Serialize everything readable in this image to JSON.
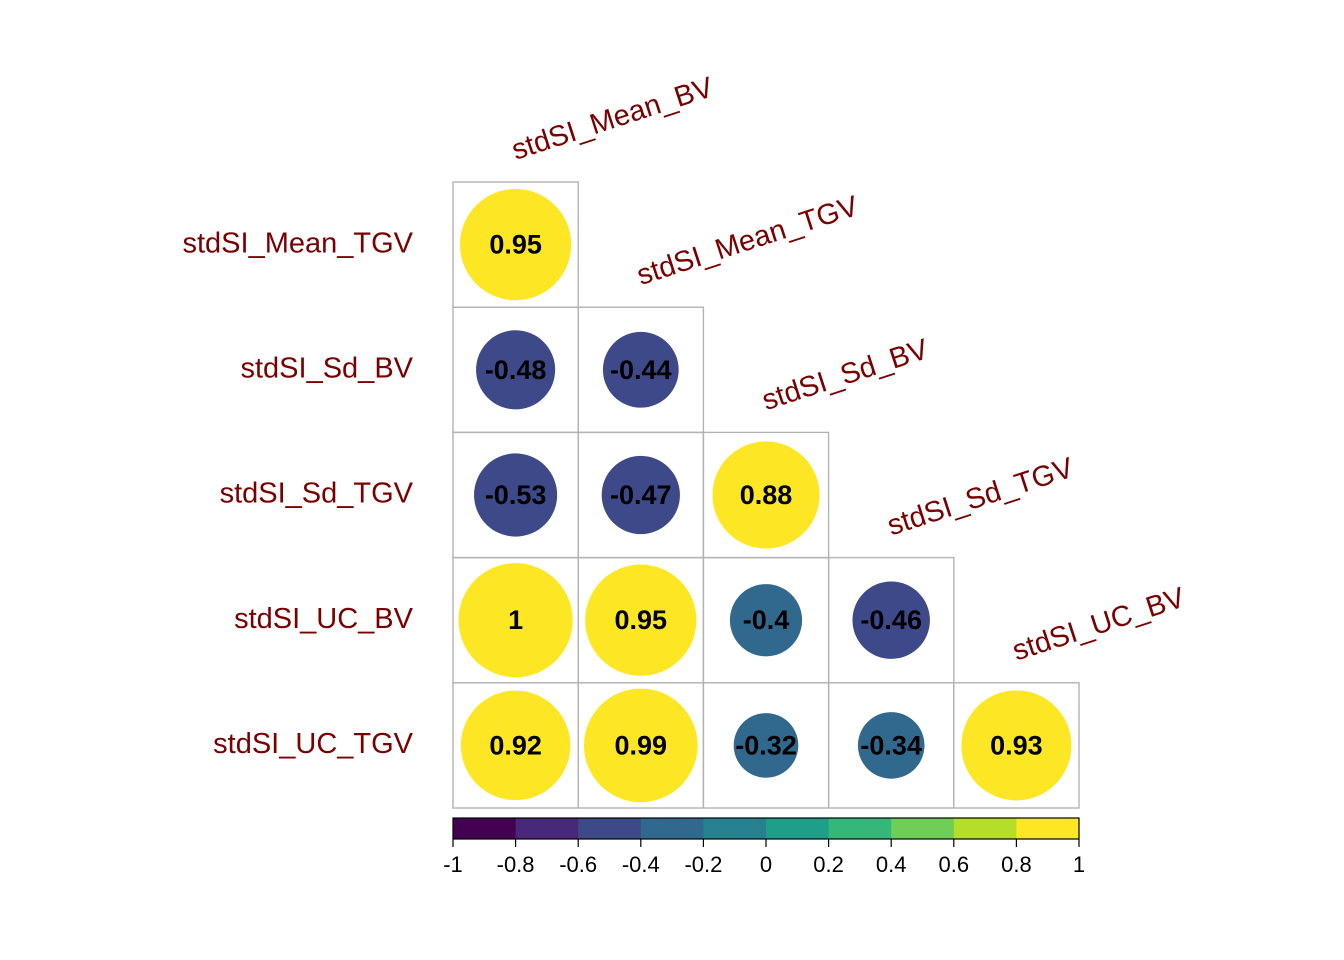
{
  "chart_data": {
    "type": "heatmap",
    "variables": [
      "stdSI_Mean_BV",
      "stdSI_Mean_TGV",
      "stdSI_Sd_BV",
      "stdSI_Sd_TGV",
      "stdSI_UC_BV",
      "stdSI_UC_TGV"
    ],
    "row_labels": [
      "stdSI_Mean_TGV",
      "stdSI_Sd_BV",
      "stdSI_Sd_TGV",
      "stdSI_UC_BV",
      "stdSI_UC_TGV"
    ],
    "col_labels": [
      "stdSI_Mean_BV",
      "stdSI_Mean_TGV",
      "stdSI_Sd_BV",
      "stdSI_Sd_TGV",
      "stdSI_UC_BV"
    ],
    "values": [
      [
        0.95
      ],
      [
        -0.48,
        -0.44
      ],
      [
        -0.53,
        -0.47,
        0.88
      ],
      [
        1,
        0.95,
        -0.4,
        -0.46
      ],
      [
        0.92,
        0.99,
        -0.32,
        -0.34,
        0.93
      ]
    ],
    "value_labels": [
      [
        "0.95"
      ],
      [
        "-0.48",
        "-0.44"
      ],
      [
        "-0.53",
        "-0.47",
        "0.88"
      ],
      [
        "1",
        "0.95",
        "-0.4",
        "-0.46"
      ],
      [
        "0.92",
        "0.99",
        "-0.32",
        "-0.34",
        "0.93"
      ]
    ],
    "method": "circle",
    "layout": "lower triangle (diagonal omitted)",
    "label_color": "#7a0000",
    "colorbar": {
      "range": [
        -1,
        1
      ],
      "ticks": [
        "-1",
        "-0.8",
        "-0.6",
        "-0.4",
        "-0.2",
        "0",
        "0.2",
        "0.4",
        "0.6",
        "0.8",
        "1"
      ],
      "colors": [
        "#440154",
        "#482878",
        "#3e4989",
        "#31688e",
        "#26828e",
        "#1f9e89",
        "#35b779",
        "#6ece58",
        "#b5de2b",
        "#fde725"
      ]
    }
  }
}
